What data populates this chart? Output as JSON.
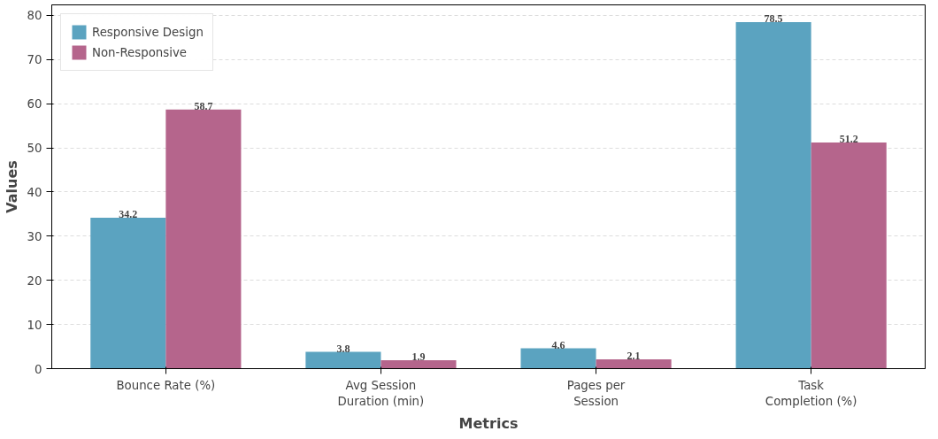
{
  "chart_data": {
    "type": "bar",
    "xlabel": "Metrics",
    "ylabel": "Values",
    "categories": [
      "Bounce Rate (%)",
      "Avg Session\nDuration (min)",
      "Pages per\nSession",
      "Task\nCompletion (%)"
    ],
    "series": [
      {
        "name": "Responsive Design",
        "color": "#5ba3c0",
        "values": [
          34.2,
          3.8,
          4.6,
          78.5
        ]
      },
      {
        "name": "Non-Responsive",
        "color": "#b5658c",
        "values": [
          58.7,
          1.9,
          2.1,
          51.2
        ]
      }
    ],
    "ylim": [
      0,
      82.4
    ],
    "yticks": [
      0,
      10,
      20,
      30,
      40,
      50,
      60,
      70,
      80
    ],
    "grid": "y",
    "legend": "top left",
    "data_labels": true
  }
}
